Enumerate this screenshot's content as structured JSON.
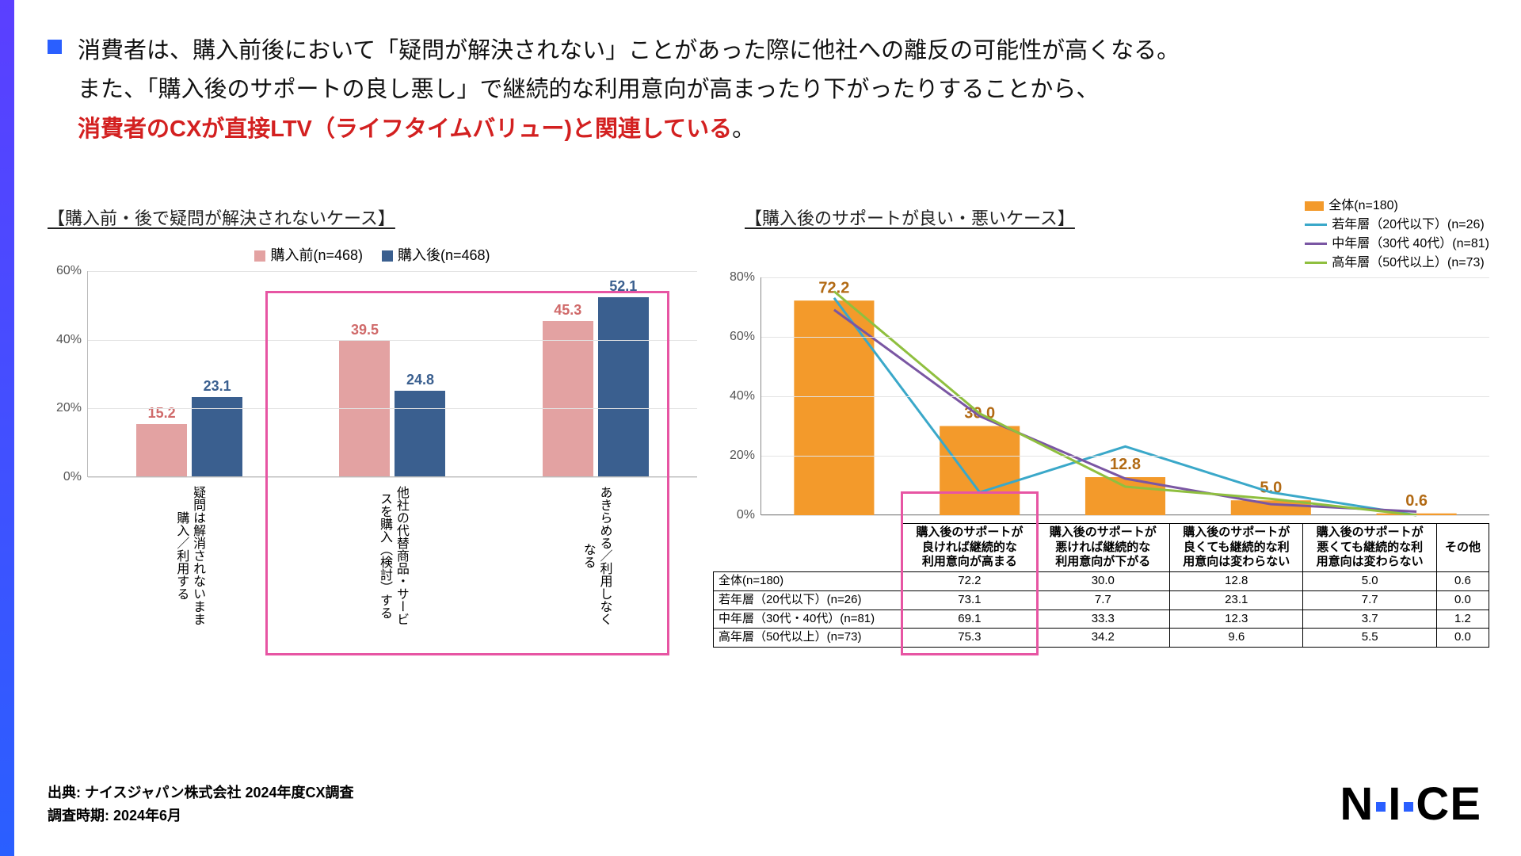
{
  "headline": {
    "line1": "消費者は、購入前後において「疑問が解決されない」ことがあった際に他社への離反の可能性が高くなる。",
    "line2": "また、「購入後のサポートの良し悪し」で継続的な利用意向が高まったり下がったりすることから、",
    "line3_red": "消費者のCXが直接LTV（ライフタイムバリュー)と関連している",
    "line3_tail": "。"
  },
  "left_chart": {
    "title": "【購入前・後で疑問が解決されないケース】",
    "legend": [
      {
        "label": "購入前(n=468)",
        "color": "#e3a2a2"
      },
      {
        "label": "購入後(n=468)",
        "color": "#3a5f8f"
      }
    ],
    "ytick_labels": [
      "0%",
      "20%",
      "40%",
      "60%"
    ],
    "ymax": 60,
    "categories": [
      "疑問は解消されないまま\n購入／利用する",
      "他社の代替商品・サービ\nスを購入（検討）する",
      "あきらめる／利用しなく\nなる"
    ],
    "series": {
      "before": {
        "color": "#e3a2a2",
        "label_color": "#d06a6a",
        "values": [
          15.2,
          39.5,
          45.3
        ]
      },
      "after": {
        "color": "#3a5f8f",
        "label_color": "#3a5f8f",
        "values": [
          23.1,
          24.8,
          52.1
        ]
      }
    },
    "highlight_color": "#e755a3"
  },
  "right_chart": {
    "title": "【購入後のサポートが良い・悪いケース】",
    "legend": [
      {
        "label": "全体(n=180)",
        "color": "#f39a2b",
        "type": "bar"
      },
      {
        "label": "若年層（20代以下）(n=26)",
        "color": "#3aa8c9",
        "type": "line"
      },
      {
        "label": "中年層（30代 40代）(n=81)",
        "color": "#7a56a3",
        "type": "line"
      },
      {
        "label": "高年層（50代以上）(n=73)",
        "color": "#8fbf3f",
        "type": "line"
      }
    ],
    "ytick_labels": [
      "0%",
      "20%",
      "40%",
      "60%",
      "80%"
    ],
    "ymax": 80,
    "bars": {
      "color": "#f39a2b",
      "label_color": "#b26a14",
      "values": [
        72.2,
        30.0,
        12.8,
        5.0,
        0.6
      ]
    },
    "lines": [
      {
        "color": "#3aa8c9",
        "values": [
          73.1,
          7.7,
          23.1,
          7.7,
          0.0
        ]
      },
      {
        "color": "#7a56a3",
        "values": [
          69.1,
          33.3,
          12.3,
          3.7,
          1.2
        ]
      },
      {
        "color": "#8fbf3f",
        "values": [
          75.3,
          34.2,
          9.6,
          5.5,
          0.0
        ]
      }
    ],
    "table": {
      "columns": [
        "購入後のサポートが\n良ければ継続的な\n利用意向が高まる",
        "購入後のサポートが\n悪ければ継続的な\n利用意向が下がる",
        "購入後のサポートが\n良くても継続的な利\n用意向は変わらない",
        "購入後のサポートが\n悪くても継続的な利\n用意向は変わらない",
        "その他"
      ],
      "rows": [
        {
          "hdr": "全体(n=180)",
          "cells": [
            72.2,
            30.0,
            12.8,
            5.0,
            0.6
          ]
        },
        {
          "hdr": "若年層（20代以下）(n=26)",
          "cells": [
            73.1,
            7.7,
            23.1,
            7.7,
            0.0
          ]
        },
        {
          "hdr": "中年層（30代・40代）(n=81)",
          "cells": [
            69.1,
            33.3,
            12.3,
            3.7,
            1.2
          ]
        },
        {
          "hdr": "高年層（50代以上）(n=73)",
          "cells": [
            75.3,
            34.2,
            9.6,
            5.5,
            0.0
          ]
        }
      ],
      "highlight_col": 0,
      "highlight_color": "#e755a3"
    }
  },
  "source": {
    "line1": "出典: ナイスジャパン株式会社 2024年度CX調査",
    "line2": "調査時期: 2024年6月"
  },
  "logo_text": {
    "a": "N",
    "b": "I",
    "c": "C",
    "d": "E"
  }
}
